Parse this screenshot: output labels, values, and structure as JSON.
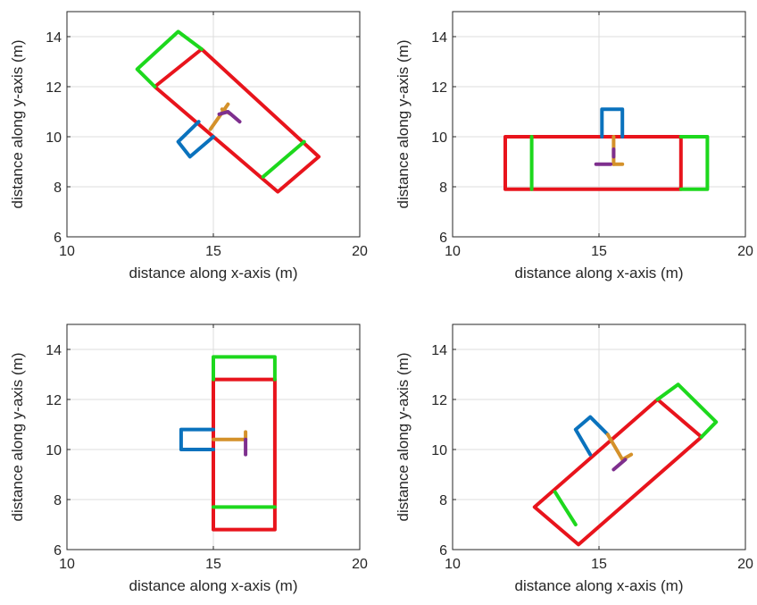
{
  "chart_data": [
    {
      "type": "line",
      "xlabel": "distance along x-axis (m)",
      "ylabel": "distance along y-axis (m)",
      "xlim": [
        10,
        20
      ],
      "ylim": [
        6,
        15
      ],
      "xticks": [
        "10",
        "15",
        "20"
      ],
      "yticks": [
        "6",
        "8",
        "10",
        "12",
        "14"
      ],
      "grid": true,
      "shapes": [
        {
          "color": "#e8141c",
          "closed": true,
          "points": [
            [
              13.0,
              12.0
            ],
            [
              14.6,
              13.5
            ],
            [
              18.6,
              9.2
            ],
            [
              17.2,
              7.8
            ]
          ]
        },
        {
          "color": "#1dd81d",
          "closed": false,
          "points": [
            [
              13.0,
              12.0
            ],
            [
              12.4,
              12.7
            ],
            [
              13.8,
              14.2
            ],
            [
              14.6,
              13.5
            ]
          ]
        },
        {
          "color": "#1dd81d",
          "closed": false,
          "points": [
            [
              16.7,
              8.4
            ],
            [
              18.1,
              9.8
            ]
          ]
        },
        {
          "color": "#0a72bd",
          "closed": false,
          "points": [
            [
              14.5,
              10.6
            ],
            [
              13.8,
              9.8
            ],
            [
              14.2,
              9.2
            ],
            [
              15.0,
              10.0
            ]
          ]
        },
        {
          "color": "#d4912a",
          "closed": false,
          "points": [
            [
              14.9,
              10.3
            ],
            [
              15.5,
              11.3
            ]
          ]
        },
        {
          "color": "#d4912a",
          "closed": false,
          "points": [
            [
              15.3,
              11.1
            ],
            [
              15.6,
              10.9
            ]
          ]
        },
        {
          "color": "#7e2f8e",
          "closed": false,
          "points": [
            [
              15.2,
              10.9
            ],
            [
              15.5,
              11.0
            ],
            [
              15.9,
              10.6
            ]
          ]
        }
      ]
    },
    {
      "type": "line",
      "xlabel": "distance along x-axis (m)",
      "ylabel": "distance along y-axis (m)",
      "xlim": [
        10,
        20
      ],
      "ylim": [
        6,
        15
      ],
      "xticks": [
        "10",
        "15",
        "20"
      ],
      "yticks": [
        "6",
        "8",
        "10",
        "12",
        "14"
      ],
      "grid": true,
      "shapes": [
        {
          "color": "#e8141c",
          "closed": true,
          "points": [
            [
              11.8,
              7.9
            ],
            [
              11.8,
              10.0
            ],
            [
              17.8,
              10.0
            ],
            [
              17.8,
              7.9
            ]
          ]
        },
        {
          "color": "#1dd81d",
          "closed": false,
          "points": [
            [
              12.7,
              7.9
            ],
            [
              12.7,
              10.0
            ]
          ]
        },
        {
          "color": "#1dd81d",
          "closed": false,
          "points": [
            [
              17.8,
              10.0
            ],
            [
              18.7,
              10.0
            ],
            [
              18.7,
              7.9
            ],
            [
              17.8,
              7.9
            ]
          ]
        },
        {
          "color": "#0a72bd",
          "closed": false,
          "points": [
            [
              15.1,
              10.0
            ],
            [
              15.1,
              11.1
            ],
            [
              15.8,
              11.1
            ],
            [
              15.8,
              10.0
            ]
          ]
        },
        {
          "color": "#d4912a",
          "closed": false,
          "points": [
            [
              15.5,
              10.0
            ],
            [
              15.5,
              8.9
            ]
          ]
        },
        {
          "color": "#d4912a",
          "closed": false,
          "points": [
            [
              15.5,
              8.9
            ],
            [
              15.8,
              8.9
            ]
          ]
        },
        {
          "color": "#7e2f8e",
          "closed": false,
          "points": [
            [
              14.9,
              8.9
            ],
            [
              15.4,
              8.9
            ]
          ]
        },
        {
          "color": "#7e2f8e",
          "closed": false,
          "points": [
            [
              15.5,
              9.2
            ],
            [
              15.5,
              9.5
            ]
          ]
        }
      ]
    },
    {
      "type": "line",
      "xlabel": "distance along x-axis (m)",
      "ylabel": "distance along y-axis (m)",
      "xlim": [
        10,
        20
      ],
      "ylim": [
        6,
        15
      ],
      "xticks": [
        "10",
        "15",
        "20"
      ],
      "yticks": [
        "6",
        "8",
        "10",
        "12",
        "14"
      ],
      "grid": true,
      "shapes": [
        {
          "color": "#e8141c",
          "closed": true,
          "points": [
            [
              15.0,
              6.8
            ],
            [
              15.0,
              12.8
            ],
            [
              17.1,
              12.8
            ],
            [
              17.1,
              6.8
            ]
          ]
        },
        {
          "color": "#1dd81d",
          "closed": false,
          "points": [
            [
              15.0,
              12.8
            ],
            [
              15.0,
              13.7
            ],
            [
              17.1,
              13.7
            ],
            [
              17.1,
              12.8
            ]
          ]
        },
        {
          "color": "#1dd81d",
          "closed": false,
          "points": [
            [
              15.0,
              7.7
            ],
            [
              17.1,
              7.7
            ]
          ]
        },
        {
          "color": "#0a72bd",
          "closed": false,
          "points": [
            [
              15.0,
              10.8
            ],
            [
              13.9,
              10.8
            ],
            [
              13.9,
              10.0
            ],
            [
              15.0,
              10.0
            ]
          ]
        },
        {
          "color": "#d4912a",
          "closed": false,
          "points": [
            [
              15.0,
              10.4
            ],
            [
              16.1,
              10.4
            ]
          ]
        },
        {
          "color": "#d4912a",
          "closed": false,
          "points": [
            [
              16.1,
              10.4
            ],
            [
              16.1,
              10.7
            ]
          ]
        },
        {
          "color": "#7e2f8e",
          "closed": false,
          "points": [
            [
              16.1,
              10.4
            ],
            [
              16.1,
              9.8
            ]
          ]
        }
      ]
    },
    {
      "type": "line",
      "xlabel": "distance along x-axis (m)",
      "ylabel": "distance along y-axis (m)",
      "xlim": [
        10,
        20
      ],
      "ylim": [
        6,
        15
      ],
      "xticks": [
        "10",
        "15",
        "20"
      ],
      "yticks": [
        "6",
        "8",
        "10",
        "12",
        "14"
      ],
      "grid": true,
      "shapes": [
        {
          "color": "#e8141c",
          "closed": true,
          "points": [
            [
              12.8,
              7.7
            ],
            [
              14.3,
              6.2
            ],
            [
              18.5,
              10.5
            ],
            [
              17.0,
              12.0
            ]
          ]
        },
        {
          "color": "#1dd81d",
          "closed": false,
          "points": [
            [
              13.5,
              8.3
            ],
            [
              14.2,
              7.0
            ]
          ]
        },
        {
          "color": "#1dd81d",
          "closed": false,
          "points": [
            [
              17.0,
              12.0
            ],
            [
              17.7,
              12.6
            ],
            [
              19.0,
              11.1
            ],
            [
              18.5,
              10.5
            ]
          ]
        },
        {
          "color": "#0a72bd",
          "closed": false,
          "points": [
            [
              14.7,
              9.8
            ],
            [
              14.2,
              10.8
            ],
            [
              14.7,
              11.3
            ],
            [
              15.3,
              10.6
            ]
          ]
        },
        {
          "color": "#d4912a",
          "closed": false,
          "points": [
            [
              15.3,
              10.6
            ],
            [
              15.8,
              9.6
            ]
          ]
        },
        {
          "color": "#d4912a",
          "closed": false,
          "points": [
            [
              15.8,
              9.6
            ],
            [
              16.1,
              9.8
            ]
          ]
        },
        {
          "color": "#7e2f8e",
          "closed": false,
          "points": [
            [
              15.5,
              9.2
            ],
            [
              15.9,
              9.6
            ]
          ]
        }
      ]
    }
  ]
}
